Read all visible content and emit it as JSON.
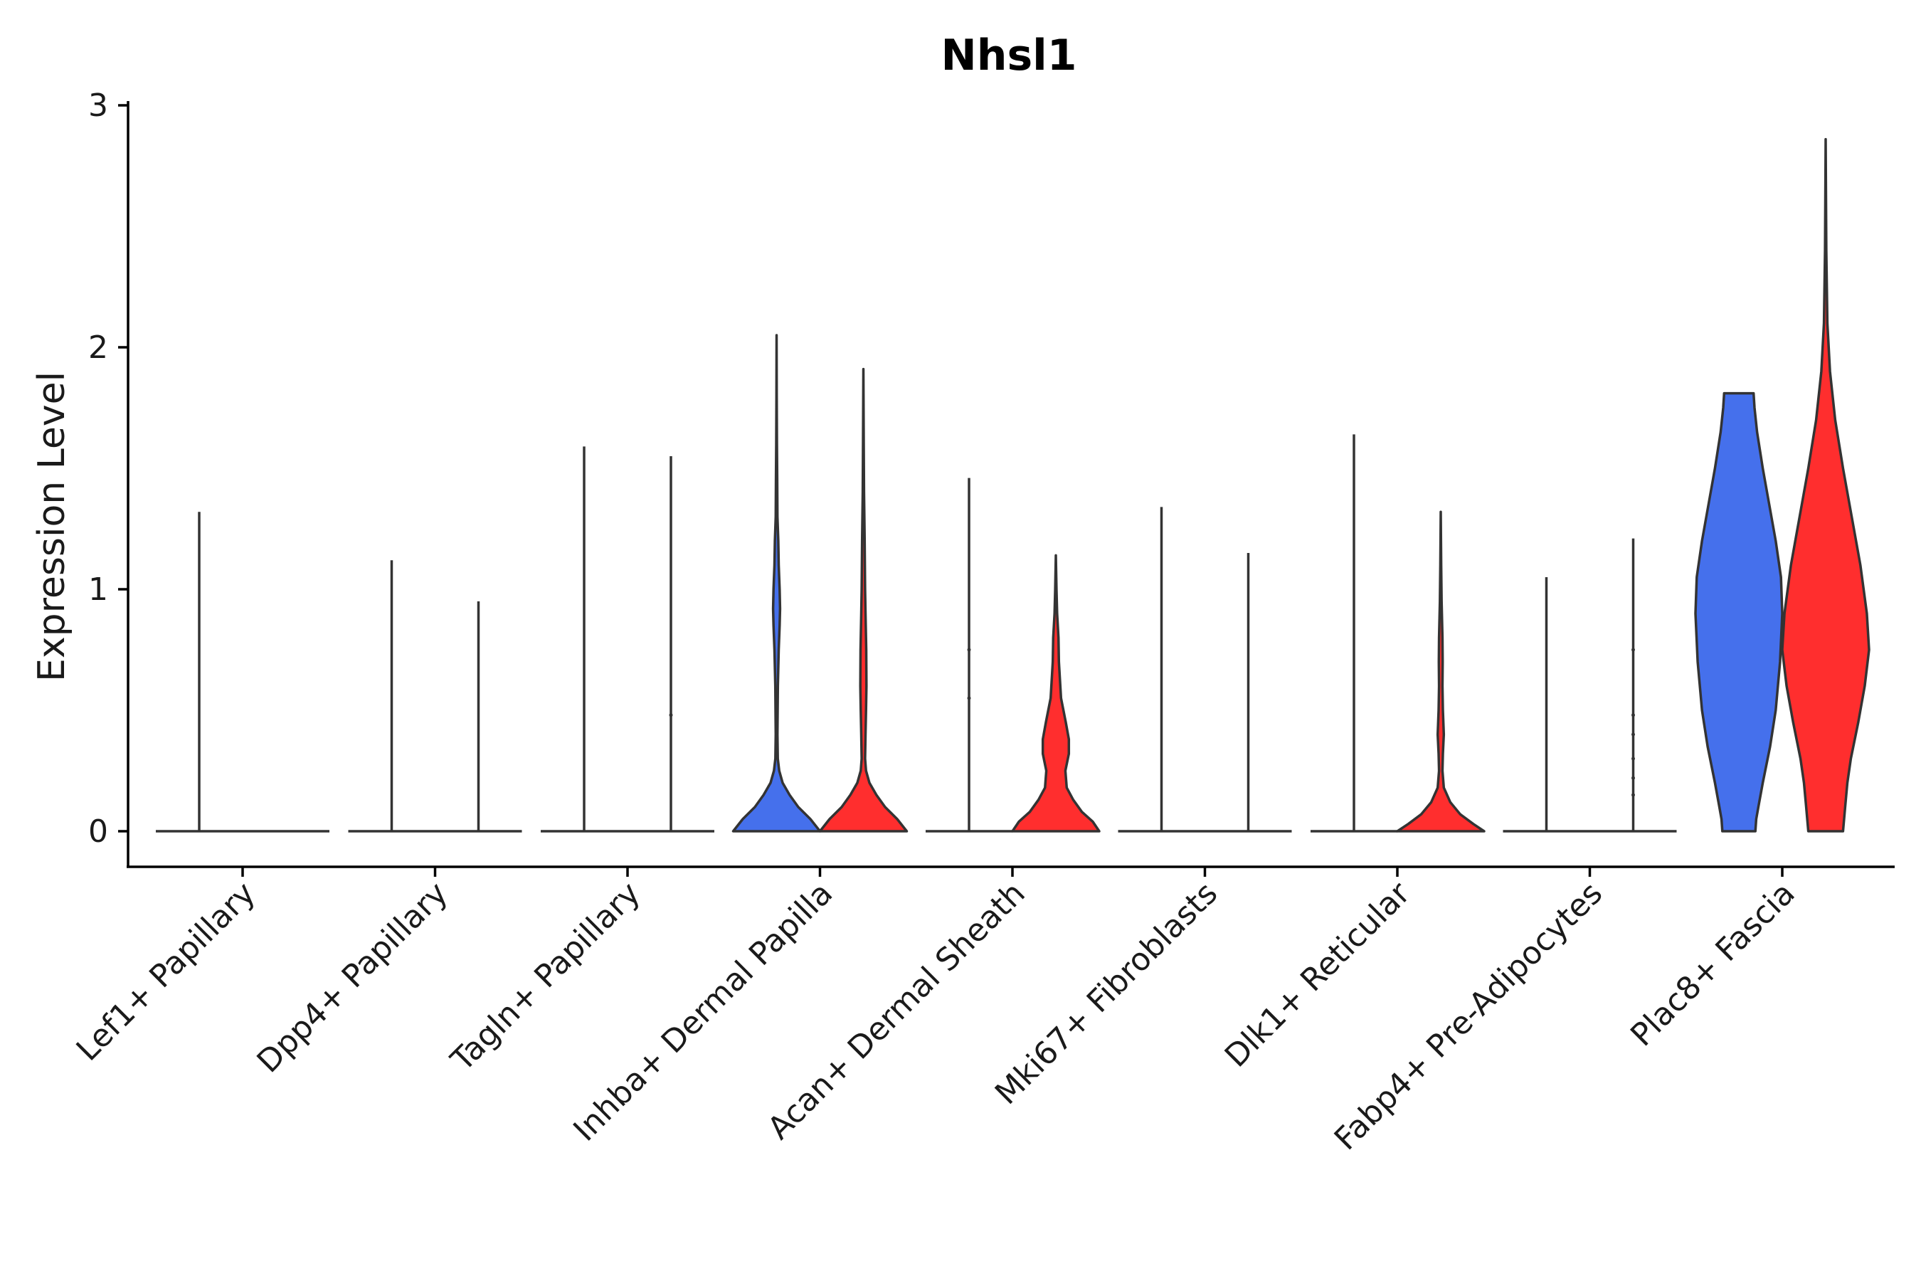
{
  "chart_data": {
    "type": "violin",
    "title": "Nhsl1",
    "xlabel": "",
    "ylabel": "Expression Level",
    "ylim": [
      -0.14,
      3.0
    ],
    "yticks": [
      0,
      1,
      2,
      3
    ],
    "grid": false,
    "legend": "none",
    "colors": {
      "group_a": "#4570EC",
      "group_b": "#FF2E2E"
    },
    "categories": [
      "Lef1+ Papillary",
      "Dpp4+ Papillary",
      "Tagln+ Papillary",
      "Inhba+ Dermal Papilla",
      "Acan+ Dermal Sheath",
      "Mki67+ Fibroblasts",
      "Dlk1+ Reticular",
      "Fabp4+ Pre-Adipocytes",
      "Plac8+ Fascia"
    ],
    "violins": [
      {
        "category": 0,
        "group": "group_a",
        "max": 0,
        "line_max": 1.32,
        "maxw": 0.5,
        "profile": [
          [
            0,
            0
          ],
          [
            0.02,
            0
          ]
        ]
      },
      {
        "category": 0,
        "group": "group_b",
        "max": 0,
        "line_max": 0,
        "maxw": 0.5,
        "profile": [
          [
            0,
            0
          ],
          [
            0.02,
            0
          ]
        ]
      },
      {
        "category": 1,
        "group": "group_a",
        "max": 0,
        "line_max": 1.12,
        "maxw": 0.5,
        "profile": [
          [
            0,
            0
          ],
          [
            0.02,
            0
          ]
        ]
      },
      {
        "category": 1,
        "group": "group_b",
        "max": 0,
        "line_max": 0.95,
        "maxw": 0.5,
        "profile": [
          [
            0,
            0
          ],
          [
            0.02,
            0
          ]
        ]
      },
      {
        "category": 2,
        "group": "group_a",
        "max": 0,
        "line_max": 1.59,
        "maxw": 0.5,
        "profile": [
          [
            0,
            0
          ],
          [
            0.02,
            0
          ]
        ]
      },
      {
        "category": 2,
        "group": "group_b",
        "max": 0,
        "line_max": 1.55,
        "maxw": 0.5,
        "profile": [
          [
            0,
            0
          ],
          [
            0.02,
            0
          ]
        ]
      },
      {
        "category": 3,
        "group": "group_a",
        "max": 2.05,
        "maxw": 0.5,
        "profile": [
          [
            0,
            1
          ],
          [
            0.05,
            0.78
          ],
          [
            0.1,
            0.5
          ],
          [
            0.15,
            0.3
          ],
          [
            0.2,
            0.14
          ],
          [
            0.25,
            0.06
          ],
          [
            0.3,
            0.028
          ],
          [
            0.4,
            0.02
          ],
          [
            0.6,
            0.03
          ],
          [
            0.75,
            0.05
          ],
          [
            0.85,
            0.07
          ],
          [
            0.92,
            0.08
          ],
          [
            1.0,
            0.07
          ],
          [
            1.1,
            0.05
          ],
          [
            1.2,
            0.04
          ],
          [
            1.3,
            0.02
          ],
          [
            1.45,
            0.015
          ],
          [
            1.6,
            0.008
          ],
          [
            1.8,
            0.004
          ],
          [
            2.05,
            0
          ]
        ]
      },
      {
        "category": 3,
        "group": "group_b",
        "max": 1.91,
        "maxw": 0.5,
        "profile": [
          [
            0,
            1
          ],
          [
            0.05,
            0.78
          ],
          [
            0.1,
            0.5
          ],
          [
            0.15,
            0.3
          ],
          [
            0.2,
            0.14
          ],
          [
            0.25,
            0.06
          ],
          [
            0.3,
            0.04
          ],
          [
            0.4,
            0.05
          ],
          [
            0.5,
            0.06
          ],
          [
            0.6,
            0.07
          ],
          [
            0.75,
            0.065
          ],
          [
            0.9,
            0.05
          ],
          [
            1.0,
            0.04
          ],
          [
            1.2,
            0.03
          ],
          [
            1.4,
            0.015
          ],
          [
            1.6,
            0.008
          ],
          [
            1.91,
            0
          ]
        ]
      },
      {
        "category": 4,
        "group": "group_a",
        "max": 0,
        "line_max": 1.46,
        "maxw": 0.5,
        "profile": [
          [
            0,
            0
          ],
          [
            0.02,
            0
          ]
        ]
      },
      {
        "category": 4,
        "group": "group_b",
        "max": 1.14,
        "maxw": 0.5,
        "profile": [
          [
            0,
            1
          ],
          [
            0.04,
            0.85
          ],
          [
            0.08,
            0.6
          ],
          [
            0.13,
            0.4
          ],
          [
            0.18,
            0.25
          ],
          [
            0.25,
            0.22
          ],
          [
            0.32,
            0.3
          ],
          [
            0.38,
            0.3
          ],
          [
            0.45,
            0.23
          ],
          [
            0.55,
            0.12
          ],
          [
            0.7,
            0.07
          ],
          [
            0.8,
            0.06
          ],
          [
            0.9,
            0.03
          ],
          [
            1.0,
            0.015
          ],
          [
            1.14,
            0
          ]
        ]
      },
      {
        "category": 5,
        "group": "group_a",
        "max": 0,
        "line_max": 1.34,
        "maxw": 0.5,
        "profile": [
          [
            0,
            0
          ],
          [
            0.02,
            0
          ]
        ]
      },
      {
        "category": 5,
        "group": "group_b",
        "max": 0,
        "line_max": 1.15,
        "maxw": 0.5,
        "profile": [
          [
            0,
            0
          ],
          [
            0.02,
            0
          ]
        ]
      },
      {
        "category": 6,
        "group": "group_a",
        "max": 0,
        "line_max": 1.64,
        "maxw": 0.5,
        "profile": [
          [
            0,
            0
          ],
          [
            0.02,
            0
          ]
        ]
      },
      {
        "category": 6,
        "group": "group_b",
        "max": 1.32,
        "maxw": 0.5,
        "profile": [
          [
            0,
            1
          ],
          [
            0.03,
            0.75
          ],
          [
            0.07,
            0.45
          ],
          [
            0.12,
            0.22
          ],
          [
            0.18,
            0.07
          ],
          [
            0.25,
            0.04
          ],
          [
            0.32,
            0.05
          ],
          [
            0.4,
            0.07
          ],
          [
            0.5,
            0.05
          ],
          [
            0.6,
            0.04
          ],
          [
            0.7,
            0.045
          ],
          [
            0.8,
            0.04
          ],
          [
            0.95,
            0.02
          ],
          [
            1.1,
            0.01
          ],
          [
            1.32,
            0
          ]
        ]
      },
      {
        "category": 7,
        "group": "group_a",
        "max": 0,
        "line_max": 1.05,
        "maxw": 0.5,
        "profile": [
          [
            0,
            0
          ],
          [
            0.02,
            0
          ]
        ]
      },
      {
        "category": 7,
        "group": "group_b",
        "max": 0,
        "line_max": 1.21,
        "maxw": 0.5,
        "profile": [
          [
            0,
            0
          ],
          [
            0.02,
            0
          ]
        ]
      },
      {
        "category": 8,
        "group": "group_a",
        "max": 1.81,
        "maxw": 0.5,
        "profile": [
          [
            0,
            0.38
          ],
          [
            0.05,
            0.4
          ],
          [
            0.1,
            0.45
          ],
          [
            0.2,
            0.55
          ],
          [
            0.35,
            0.72
          ],
          [
            0.5,
            0.85
          ],
          [
            0.7,
            0.95
          ],
          [
            0.9,
            1.0
          ],
          [
            1.05,
            0.97
          ],
          [
            1.2,
            0.85
          ],
          [
            1.35,
            0.7
          ],
          [
            1.5,
            0.55
          ],
          [
            1.65,
            0.42
          ],
          [
            1.75,
            0.36
          ],
          [
            1.81,
            0.34
          ]
        ]
      },
      {
        "category": 8,
        "group": "group_b",
        "max": 2.86,
        "maxw": 0.5,
        "profile": [
          [
            0,
            0.4
          ],
          [
            0.1,
            0.45
          ],
          [
            0.2,
            0.5
          ],
          [
            0.3,
            0.58
          ],
          [
            0.45,
            0.75
          ],
          [
            0.6,
            0.9
          ],
          [
            0.75,
            1.0
          ],
          [
            0.9,
            0.95
          ],
          [
            1.1,
            0.8
          ],
          [
            1.3,
            0.6
          ],
          [
            1.5,
            0.4
          ],
          [
            1.7,
            0.22
          ],
          [
            1.9,
            0.1
          ],
          [
            2.1,
            0.04
          ],
          [
            2.4,
            0.015
          ],
          [
            2.86,
            0
          ]
        ]
      }
    ],
    "points": [
      {
        "category": 4,
        "group": "group_a",
        "values": [
          0.55,
          0.75
        ]
      },
      {
        "category": 7,
        "group": "group_b",
        "values": [
          0.15,
          0.22,
          0.3,
          0.4,
          0.48,
          0.75
        ]
      },
      {
        "category": 2,
        "group": "group_b",
        "values": [
          0.48
        ]
      }
    ]
  }
}
